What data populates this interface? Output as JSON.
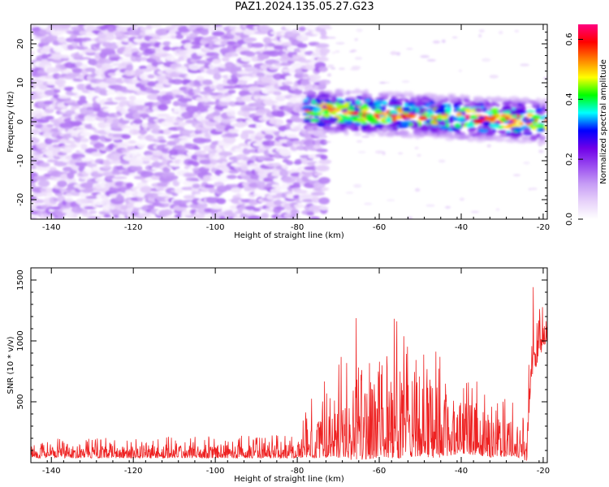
{
  "title": "PAZ1.2024.135.05.27.G23",
  "chart_data": [
    {
      "type": "heatmap",
      "xlabel": "Height of straight line (km)",
      "ylabel": "Frequency (Hz)",
      "xlim": [
        -145,
        -19
      ],
      "ylim": [
        -25,
        25
      ],
      "xticks": [
        -140,
        -120,
        -100,
        -80,
        -60,
        -40,
        -20
      ],
      "yticks": [
        -20,
        -10,
        0,
        10,
        20
      ],
      "colorbar": {
        "label": "Normalized spectral amplitude",
        "range": [
          0,
          0.65
        ],
        "ticks": [
          0.0,
          0.2,
          0.4,
          0.6
        ],
        "colors": [
          "#ffffff",
          "#e7d2fa",
          "#c69cf5",
          "#9a4cf0",
          "#7000e8",
          "#0000ff",
          "#00ffff",
          "#00ff00",
          "#ffff00",
          "#ff8000",
          "#ff0000",
          "#ff0080"
        ]
      },
      "description_regions": [
        {
          "x_range": [
            -145,
            -73
          ],
          "y_range": [
            -25,
            25
          ],
          "level": [
            0.05,
            0.12
          ]
        },
        {
          "x_range": [
            -78,
            -19
          ],
          "center_y": [
            3,
            0
          ],
          "half_width": 3.5,
          "level": [
            0.2,
            0.6
          ]
        }
      ],
      "grid": false
    },
    {
      "type": "line",
      "xlabel": "Height of straight line (km)",
      "ylabel": "SNR (10 * v/v)",
      "xlim": [
        -145,
        -19
      ],
      "ylim": [
        0,
        1600
      ],
      "xticks": [
        -140,
        -120,
        -100,
        -80,
        -60,
        -40,
        -20
      ],
      "yticks": [
        500,
        1000,
        1500
      ],
      "color": "#ee2222",
      "envelope": [
        {
          "x": -145,
          "base": 80,
          "amp": 120
        },
        {
          "x": -80,
          "base": 90,
          "amp": 150
        },
        {
          "x": -77,
          "base": 180,
          "amp": 400
        },
        {
          "x": -70,
          "base": 250,
          "amp": 600
        },
        {
          "x": -66,
          "base": 350,
          "amp": 950
        },
        {
          "x": -60,
          "base": 300,
          "amp": 750
        },
        {
          "x": -56,
          "base": 350,
          "amp": 900
        },
        {
          "x": -50,
          "base": 350,
          "amp": 850
        },
        {
          "x": -46,
          "base": 300,
          "amp": 750
        },
        {
          "x": -40,
          "base": 250,
          "amp": 500
        },
        {
          "x": -32,
          "base": 200,
          "amp": 450
        },
        {
          "x": -27,
          "base": 180,
          "amp": 350
        },
        {
          "x": -24,
          "base": 100,
          "amp": 250
        },
        {
          "x": -23,
          "base": 900,
          "amp": 650
        },
        {
          "x": -20,
          "base": 1050,
          "amp": 300
        },
        {
          "x": -19,
          "base": 1100,
          "amp": 250
        }
      ]
    }
  ]
}
